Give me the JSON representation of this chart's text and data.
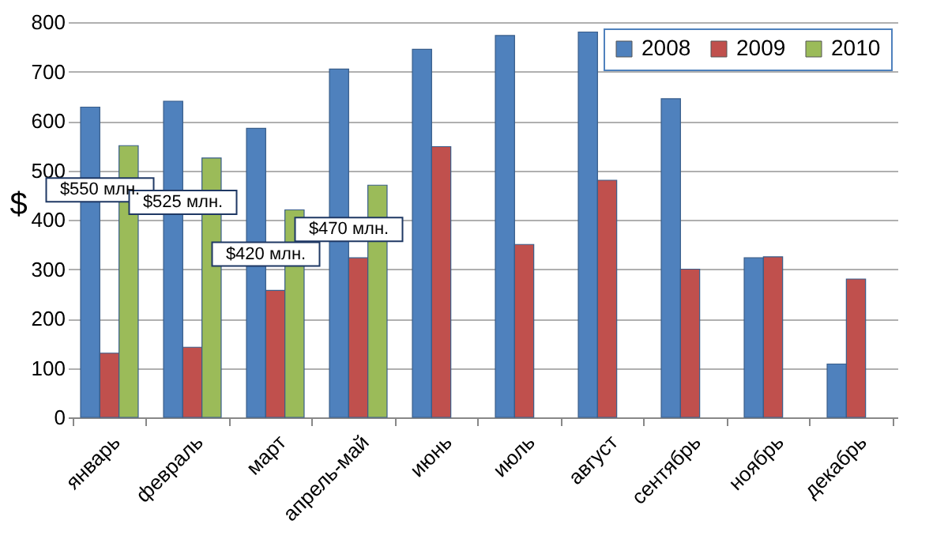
{
  "chart_data": {
    "type": "bar",
    "ylabel": "$",
    "categories": [
      "январь",
      "февраль",
      "март",
      "апрель-май",
      "июнь",
      "июль",
      "август",
      "сентябрь",
      "ноябрь",
      "декабрь"
    ],
    "series": [
      {
        "name": "2008",
        "color": "#4f81bd",
        "values": [
          628,
          640,
          585,
          705,
          745,
          773,
          780,
          645,
          323,
          108
        ]
      },
      {
        "name": "2009",
        "color": "#c0504d",
        "values": [
          130,
          142,
          257,
          323,
          548,
          350,
          480,
          300,
          325,
          280
        ]
      },
      {
        "name": "2010",
        "color": "#9bbb59",
        "values": [
          550,
          525,
          420,
          470,
          null,
          null,
          null,
          null,
          null,
          null
        ]
      }
    ],
    "ylim": [
      0,
      800
    ],
    "yticks": [
      0,
      100,
      200,
      300,
      400,
      500,
      600,
      700,
      800
    ],
    "grid": "y",
    "legend": "top right",
    "annotations": [
      {
        "text": "$550 млн.",
        "x": "январь",
        "y": 550
      },
      {
        "text": "$525 млн.",
        "x": "февраль",
        "y": 525
      },
      {
        "text": "$420 млн.",
        "x": "март",
        "y": 420
      },
      {
        "text": "$470 млн.",
        "x": "апрель-май",
        "y": 470
      }
    ]
  }
}
